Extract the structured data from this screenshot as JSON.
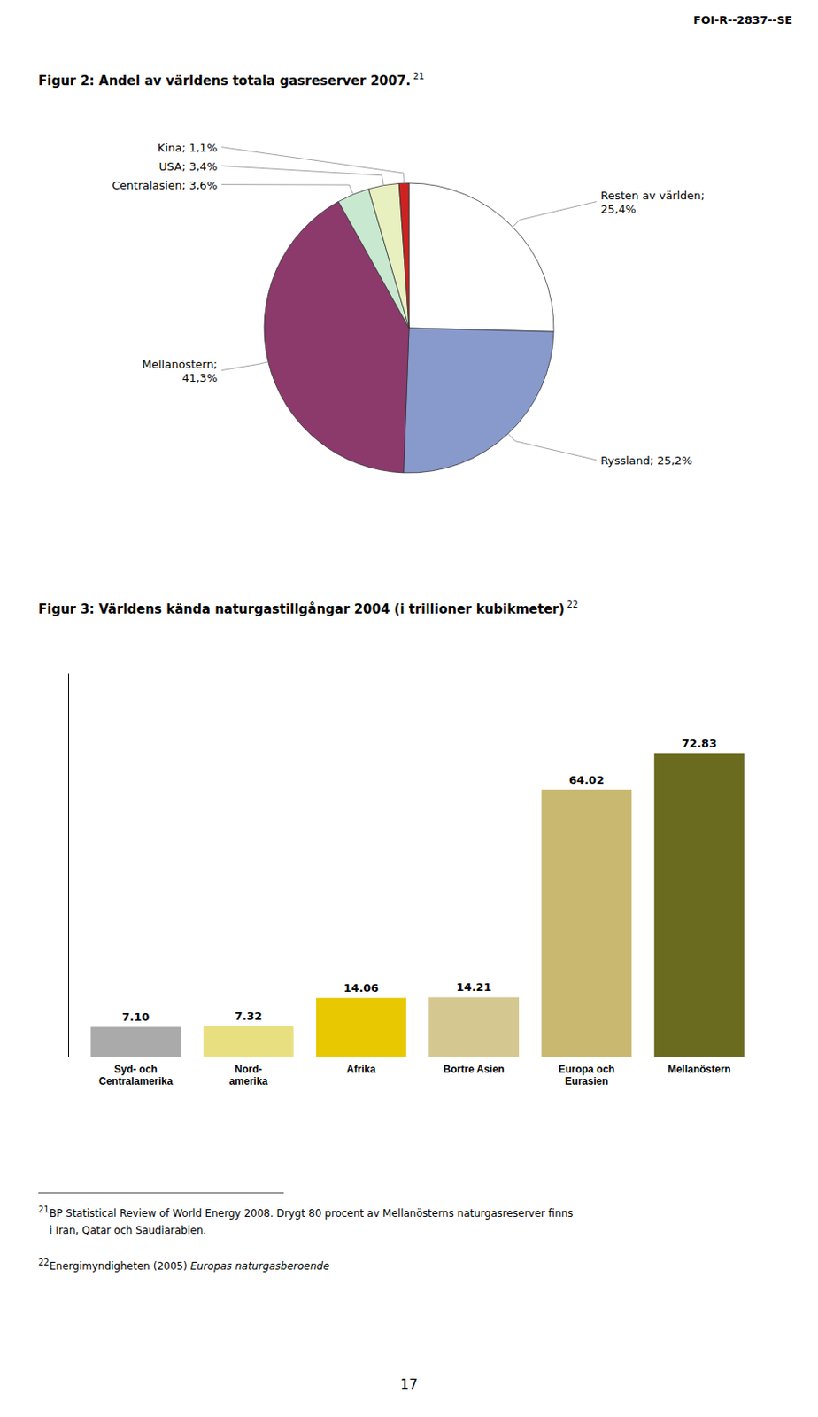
{
  "header": "FOI-R--2837--SE",
  "chart_data": [
    {
      "type": "pie",
      "title": "Figur 2: Andel av världens totala gasreserver 2007.",
      "annotations": [
        "21"
      ],
      "values": [
        25.4,
        25.2,
        41.3,
        3.6,
        3.4,
        1.1
      ],
      "value_labels": [
        "Resten av världen;\n25,4%",
        "Ryssland; 25,2%",
        "Mellanöstern;\n41,3%",
        "Centralasien; 3,6%",
        "USA; 3,4%",
        "Kina; 1,1%"
      ],
      "colors": [
        "#ffffff",
        "#8899cc",
        "#8b3a6b",
        "#c8e8d0",
        "#e8f0c0",
        "#cc2222"
      ],
      "data_labels": true
    },
    {
      "type": "bar",
      "title": "Figur 3: Världens kända naturgastillgångar 2004 (i trillioner kubikmeter)",
      "annotations": [
        "22"
      ],
      "categories": [
        "Syd- och\nCentralamerika",
        "Nord-\namerika",
        "Afrika",
        "Bortre Asien",
        "Europa och\nEurasien",
        "Mellanöstern"
      ],
      "values": [
        7.1,
        7.32,
        14.06,
        14.21,
        64.02,
        72.83
      ],
      "value_labels": [
        "7.10",
        "7.32",
        "14.06",
        "14.21",
        "64.02",
        "72.83"
      ],
      "colors": [
        "#aaaaaa",
        "#e8e080",
        "#e8c800",
        "#d4c890",
        "#c8b870",
        "#6b6b20"
      ],
      "ylim": [
        0,
        92
      ],
      "yticks": [],
      "tick_labels": "x",
      "data_labels": true
    }
  ],
  "footnotes": [
    {
      "mark": "21",
      "lines": [
        "BP Statistical Review of World Energy 2008. Drygt 80 procent av Mellanösterns naturgasreserver finns",
        "i Iran, Qatar och Saudiarabien."
      ]
    },
    {
      "mark": "22",
      "lines": [
        "Energimyndigheten (2005) "
      ],
      "italic": "Europas naturgasberoende"
    }
  ],
  "page_number": "17"
}
